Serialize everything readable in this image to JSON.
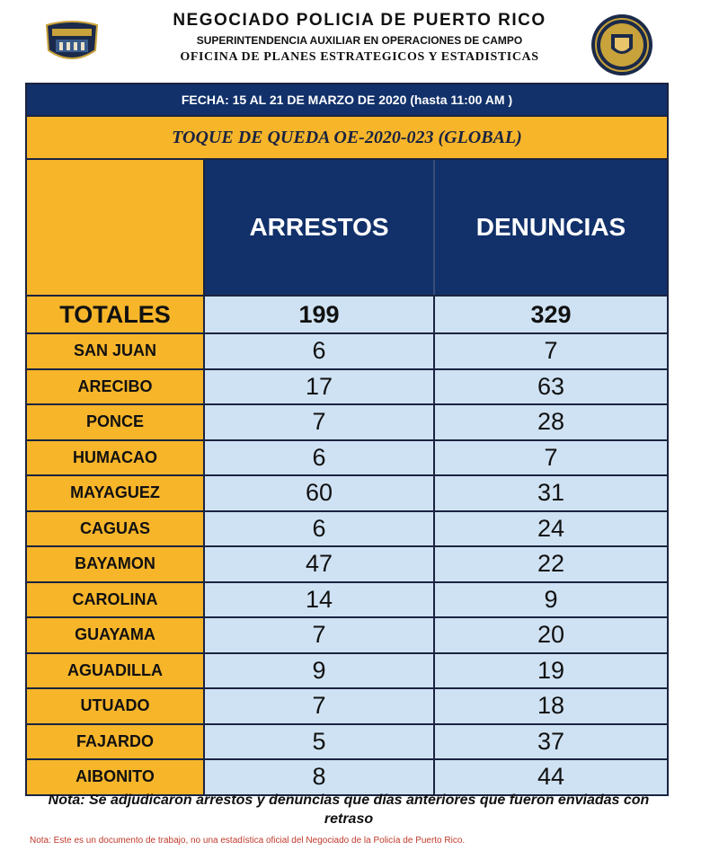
{
  "header": {
    "title": "NEGOCIADO POLICIA DE PUERTO RICO",
    "subtitle1": "SUPERINTENDENCIA AUXILIAR EN OPERACIONES DE CAMPO",
    "subtitle2": "OFICINA DE PLANES ESTRATEGICOS Y ESTADISTICAS",
    "left_logo": "police-badge-icon",
    "right_logo": "police-seal-icon"
  },
  "report": {
    "date_line": "FECHA: 15 AL 21 DE MARZO DE 2020 (hasta 11:00 AM )",
    "subject": "TOQUE DE QUEDA OE-2020-023 (GLOBAL)",
    "col_arrests": "ARRESTOS",
    "col_reports": "DENUNCIAS",
    "totals_label": "TOTALES",
    "totals_arrests": "199",
    "totals_reports": "329"
  },
  "rows": [
    {
      "region": "SAN JUAN",
      "arrests": "6",
      "reports": "7"
    },
    {
      "region": "ARECIBO",
      "arrests": "17",
      "reports": "63"
    },
    {
      "region": "PONCE",
      "arrests": "7",
      "reports": "28"
    },
    {
      "region": "HUMACAO",
      "arrests": "6",
      "reports": "7"
    },
    {
      "region": "MAYAGUEZ",
      "arrests": "60",
      "reports": "31"
    },
    {
      "region": "CAGUAS",
      "arrests": "6",
      "reports": "24"
    },
    {
      "region": "BAYAMON",
      "arrests": "47",
      "reports": "22"
    },
    {
      "region": "CAROLINA",
      "arrests": "14",
      "reports": "9"
    },
    {
      "region": "GUAYAMA",
      "arrests": "7",
      "reports": "20"
    },
    {
      "region": "AGUADILLA",
      "arrests": "9",
      "reports": "19"
    },
    {
      "region": "UTUADO",
      "arrests": "7",
      "reports": "18"
    },
    {
      "region": "FAJARDO",
      "arrests": "5",
      "reports": "37"
    },
    {
      "region": "AIBONITO",
      "arrests": "8",
      "reports": "44"
    }
  ],
  "notes": {
    "main": "Nota: Se adjudicaron arrestos y denuncias que días anteriores que fueron enviadas con retraso",
    "small": "Nota:  Este es un documento de trabajo, no una estadística oficial del Negociado de la Policía de Puerto Rico."
  },
  "colors": {
    "navy": "#12316a",
    "gold": "#f7b52a",
    "light_blue": "#cfe2f3",
    "note_red": "#c0392b"
  }
}
